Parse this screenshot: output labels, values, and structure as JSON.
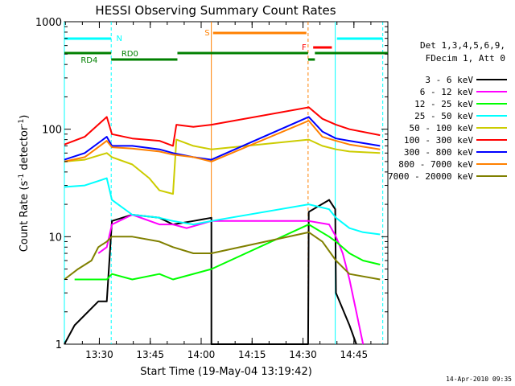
{
  "chart_data": {
    "type": "line",
    "title": "HESSI Observing Summary Count Rates",
    "xlabel": "Start Time (19-May-04 13:19:42)",
    "ylabel_main": "Count Rate (s",
    "ylabel_sup1": "-1",
    "ylabel_mid": " detector",
    "ylabel_sup2": "-1",
    "ylabel_end": ")",
    "yscale": "log",
    "ylim": [
      1,
      1000
    ],
    "xlim": [
      "13:19:42",
      "14:55:00"
    ],
    "x_ticks": [
      "13:30",
      "13:45",
      "14:00",
      "14:15",
      "14:30",
      "14:45"
    ],
    "y_ticks": [
      "1",
      "10",
      "100",
      "1000"
    ],
    "timestamp": "14-Apr-2010 09:35",
    "legend": {
      "header1": "Det 1,3,4,5,6,9,",
      "header2": "FDecim 1, Att 0",
      "position": "right"
    },
    "flags": [
      {
        "label": "N",
        "color": "#00ffff"
      },
      {
        "label": "RD0",
        "color": "#008000"
      },
      {
        "label": "RD4",
        "color": "#008000"
      },
      {
        "label": "S",
        "color": "#ff8000"
      },
      {
        "label": "F",
        "color": "#ff0000"
      }
    ],
    "markers": [
      {
        "time": "13:19:42",
        "color": "#00ffff",
        "style": "solid"
      },
      {
        "time": "13:33:30",
        "color": "#00ffff",
        "style": "dashed"
      },
      {
        "time": "14:03:00",
        "color": "#ff8000",
        "style": "solid"
      },
      {
        "time": "14:31:30",
        "color": "#ff8000",
        "style": "dashed"
      },
      {
        "time": "14:39:30",
        "color": "#00ffff",
        "style": "solid"
      },
      {
        "time": "14:53:30",
        "color": "#00ffff",
        "style": "dashed"
      }
    ],
    "series": [
      {
        "name": "3 - 6 keV",
        "color": "#000000",
        "points": [
          [
            0,
            1
          ],
          [
            3,
            1.5
          ],
          [
            10,
            2.5
          ],
          [
            12.5,
            2.5
          ],
          [
            14,
            14
          ],
          [
            20,
            16
          ],
          [
            28,
            15
          ],
          [
            32,
            13
          ],
          [
            38,
            14
          ],
          [
            43.3,
            15
          ],
          [
            43.3,
            1
          ],
          [
            71.8,
            1
          ],
          [
            72,
            17
          ],
          [
            78,
            22
          ],
          [
            79.8,
            18
          ],
          [
            80,
            3
          ],
          [
            84,
            1.5
          ],
          [
            86,
            1
          ]
        ]
      },
      {
        "name": "6 - 12 keV",
        "color": "#ff00ff",
        "points": [
          [
            10,
            7
          ],
          [
            12.5,
            8
          ],
          [
            14,
            13
          ],
          [
            20,
            16
          ],
          [
            28,
            13
          ],
          [
            32,
            13
          ],
          [
            36,
            12
          ],
          [
            43.3,
            14
          ],
          [
            72,
            14
          ],
          [
            78,
            13
          ],
          [
            80,
            10
          ],
          [
            82,
            7
          ],
          [
            84,
            4
          ],
          [
            86,
            2
          ],
          [
            88,
            1
          ]
        ]
      },
      {
        "name": "12 - 25 keV",
        "color": "#00ff00",
        "points": [
          [
            3,
            4
          ],
          [
            10,
            4
          ],
          [
            12.5,
            4
          ],
          [
            14,
            4.5
          ],
          [
            20,
            4
          ],
          [
            28,
            4.5
          ],
          [
            32,
            4
          ],
          [
            43.3,
            5
          ],
          [
            72,
            13
          ],
          [
            78,
            10
          ],
          [
            80,
            9
          ],
          [
            84,
            7
          ],
          [
            88,
            6
          ],
          [
            93,
            5.5
          ]
        ]
      },
      {
        "name": "25 - 50 keV",
        "color": "#00ffff",
        "points": [
          [
            0,
            29
          ],
          [
            6,
            30
          ],
          [
            12.5,
            35
          ],
          [
            14,
            22
          ],
          [
            20,
            16
          ],
          [
            28,
            15
          ],
          [
            32,
            14
          ],
          [
            38,
            13
          ],
          [
            43.3,
            14
          ],
          [
            72,
            20
          ],
          [
            78,
            18
          ],
          [
            80,
            15
          ],
          [
            84,
            12
          ],
          [
            88,
            11
          ],
          [
            93,
            10.5
          ]
        ]
      },
      {
        "name": "50 - 100 keV",
        "color": "#cccc00",
        "points": [
          [
            0,
            50
          ],
          [
            6,
            52
          ],
          [
            12.5,
            60
          ],
          [
            14,
            55
          ],
          [
            20,
            47
          ],
          [
            25,
            35
          ],
          [
            28,
            27
          ],
          [
            32,
            25
          ],
          [
            33,
            80
          ],
          [
            38,
            70
          ],
          [
            43.3,
            65
          ],
          [
            72,
            80
          ],
          [
            76,
            70
          ],
          [
            80,
            65
          ],
          [
            84,
            62
          ],
          [
            93,
            60
          ]
        ]
      },
      {
        "name": "100 - 300 keV",
        "color": "#ff0000",
        "points": [
          [
            0,
            72
          ],
          [
            6,
            85
          ],
          [
            12.5,
            130
          ],
          [
            14,
            90
          ],
          [
            20,
            82
          ],
          [
            28,
            78
          ],
          [
            32,
            70
          ],
          [
            33,
            110
          ],
          [
            38,
            105
          ],
          [
            43.3,
            110
          ],
          [
            72,
            160
          ],
          [
            76,
            125
          ],
          [
            80,
            110
          ],
          [
            84,
            100
          ],
          [
            93,
            88
          ]
        ]
      },
      {
        "name": "300 - 800 keV",
        "color": "#0000ff",
        "points": [
          [
            0,
            52
          ],
          [
            6,
            60
          ],
          [
            12.5,
            85
          ],
          [
            14,
            70
          ],
          [
            20,
            70
          ],
          [
            28,
            65
          ],
          [
            32,
            60
          ],
          [
            38,
            55
          ],
          [
            43.3,
            52
          ],
          [
            72,
            130
          ],
          [
            76,
            95
          ],
          [
            80,
            82
          ],
          [
            84,
            78
          ],
          [
            93,
            70
          ]
        ]
      },
      {
        "name": "800 - 7000 keV",
        "color": "#ff8000",
        "points": [
          [
            0,
            50
          ],
          [
            6,
            55
          ],
          [
            12.5,
            78
          ],
          [
            14,
            68
          ],
          [
            20,
            66
          ],
          [
            28,
            62
          ],
          [
            32,
            58
          ],
          [
            38,
            55
          ],
          [
            43.3,
            50
          ],
          [
            72,
            120
          ],
          [
            76,
            85
          ],
          [
            80,
            78
          ],
          [
            84,
            72
          ],
          [
            93,
            65
          ]
        ]
      },
      {
        "name": "7000 - 20000 keV",
        "color": "#808000",
        "points": [
          [
            0,
            4
          ],
          [
            4,
            5
          ],
          [
            8,
            6
          ],
          [
            10,
            8
          ],
          [
            12.5,
            9
          ],
          [
            14,
            10
          ],
          [
            20,
            10
          ],
          [
            28,
            9
          ],
          [
            32,
            8
          ],
          [
            38,
            7
          ],
          [
            43.3,
            7
          ],
          [
            72,
            11
          ],
          [
            76,
            9
          ],
          [
            80,
            6
          ],
          [
            84,
            4.5
          ],
          [
            93,
            4
          ]
        ]
      }
    ]
  }
}
